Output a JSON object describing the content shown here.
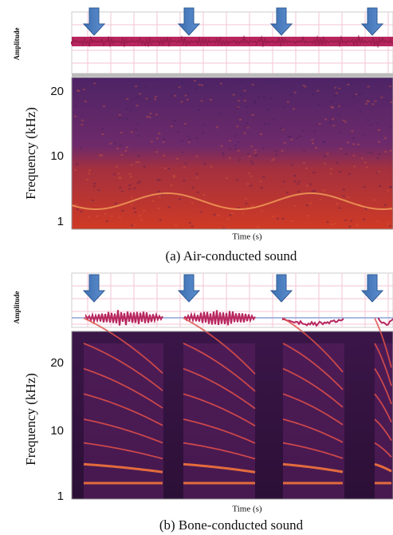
{
  "panels": [
    {
      "amplitude_label": "Amplitude",
      "frequency_label": "Frequency (kHz)",
      "frequency_ticks": [
        "20",
        "10",
        "1"
      ],
      "time_label": "Time (s)",
      "caption": "(a) Air-conducted sound"
    },
    {
      "amplitude_label": "Amplitude",
      "frequency_label": "Frequency (kHz)",
      "frequency_ticks": [
        "20",
        "10",
        "1"
      ],
      "time_label": "Time (s)",
      "caption": "(b) Bone-conducted sound"
    }
  ]
}
